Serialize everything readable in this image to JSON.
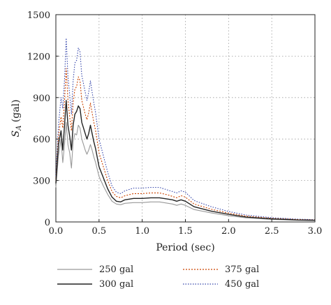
{
  "chart_data": {
    "type": "line",
    "xlabel": "Period (sec)",
    "ylabel": "S_A (gal)",
    "ylabel_main": "S",
    "ylabel_sub": "A",
    "ylabel_unit": " (gal)",
    "xlim": [
      0,
      3.0
    ],
    "ylim": [
      0,
      1500
    ],
    "xticks": [
      0.0,
      0.5,
      1.0,
      1.5,
      2.0,
      2.5,
      3.0
    ],
    "xtick_labels": [
      "0.0",
      "0.5",
      "1.0",
      "1.5",
      "2.0",
      "2.5",
      "3.0"
    ],
    "yticks": [
      0,
      300,
      600,
      900,
      1200,
      1500
    ],
    "ytick_labels": [
      "0",
      "300",
      "600",
      "900",
      "1200",
      "1500"
    ],
    "grid": true,
    "legend_position": "bottom",
    "x": [
      0.0,
      0.03,
      0.06,
      0.08,
      0.1,
      0.12,
      0.14,
      0.16,
      0.18,
      0.2,
      0.22,
      0.24,
      0.26,
      0.28,
      0.3,
      0.32,
      0.34,
      0.36,
      0.38,
      0.4,
      0.42,
      0.44,
      0.46,
      0.5,
      0.55,
      0.6,
      0.65,
      0.7,
      0.75,
      0.8,
      0.9,
      1.0,
      1.1,
      1.2,
      1.3,
      1.35,
      1.4,
      1.45,
      1.5,
      1.6,
      1.8,
      2.0,
      2.2,
      2.5,
      2.8,
      3.0
    ],
    "series": [
      {
        "name": "250 gal",
        "color": "#999999",
        "dash": "",
        "values": [
          250,
          480,
          600,
          430,
          560,
          720,
          560,
          500,
          390,
          580,
          640,
          630,
          700,
          680,
          600,
          560,
          520,
          490,
          520,
          560,
          520,
          470,
          430,
          330,
          260,
          200,
          150,
          130,
          125,
          135,
          140,
          140,
          145,
          145,
          135,
          130,
          120,
          130,
          120,
          90,
          65,
          45,
          30,
          18,
          12,
          10
        ]
      },
      {
        "name": "300 gal",
        "color": "#222222",
        "dash": "",
        "values": [
          280,
          560,
          660,
          520,
          700,
          880,
          700,
          620,
          520,
          700,
          780,
          800,
          840,
          820,
          720,
          680,
          640,
          600,
          640,
          700,
          640,
          580,
          530,
          400,
          320,
          240,
          180,
          150,
          145,
          160,
          170,
          170,
          175,
          175,
          165,
          160,
          150,
          160,
          150,
          110,
          78,
          55,
          36,
          22,
          14,
          12
        ]
      },
      {
        "name": "375 gal",
        "color": "#cc4400",
        "dash": "2,2",
        "values": [
          300,
          620,
          760,
          680,
          880,
          1110,
          880,
          760,
          660,
          860,
          960,
          980,
          1050,
          1020,
          880,
          830,
          780,
          740,
          790,
          860,
          790,
          720,
          660,
          500,
          400,
          300,
          220,
          185,
          175,
          190,
          205,
          205,
          210,
          210,
          195,
          185,
          175,
          190,
          180,
          130,
          92,
          64,
          42,
          26,
          17,
          14
        ]
      },
      {
        "name": "450 gal",
        "color": "#3344aa",
        "dash": "1.5,2",
        "values": [
          330,
          700,
          900,
          820,
          1030,
          1330,
          1050,
          920,
          780,
          1020,
          1150,
          1170,
          1260,
          1230,
          1060,
          1000,
          940,
          880,
          940,
          1020,
          940,
          860,
          790,
          600,
          480,
          360,
          260,
          215,
          205,
          225,
          245,
          245,
          250,
          250,
          230,
          220,
          210,
          225,
          215,
          155,
          110,
          76,
          50,
          31,
          20,
          16
        ]
      }
    ]
  }
}
